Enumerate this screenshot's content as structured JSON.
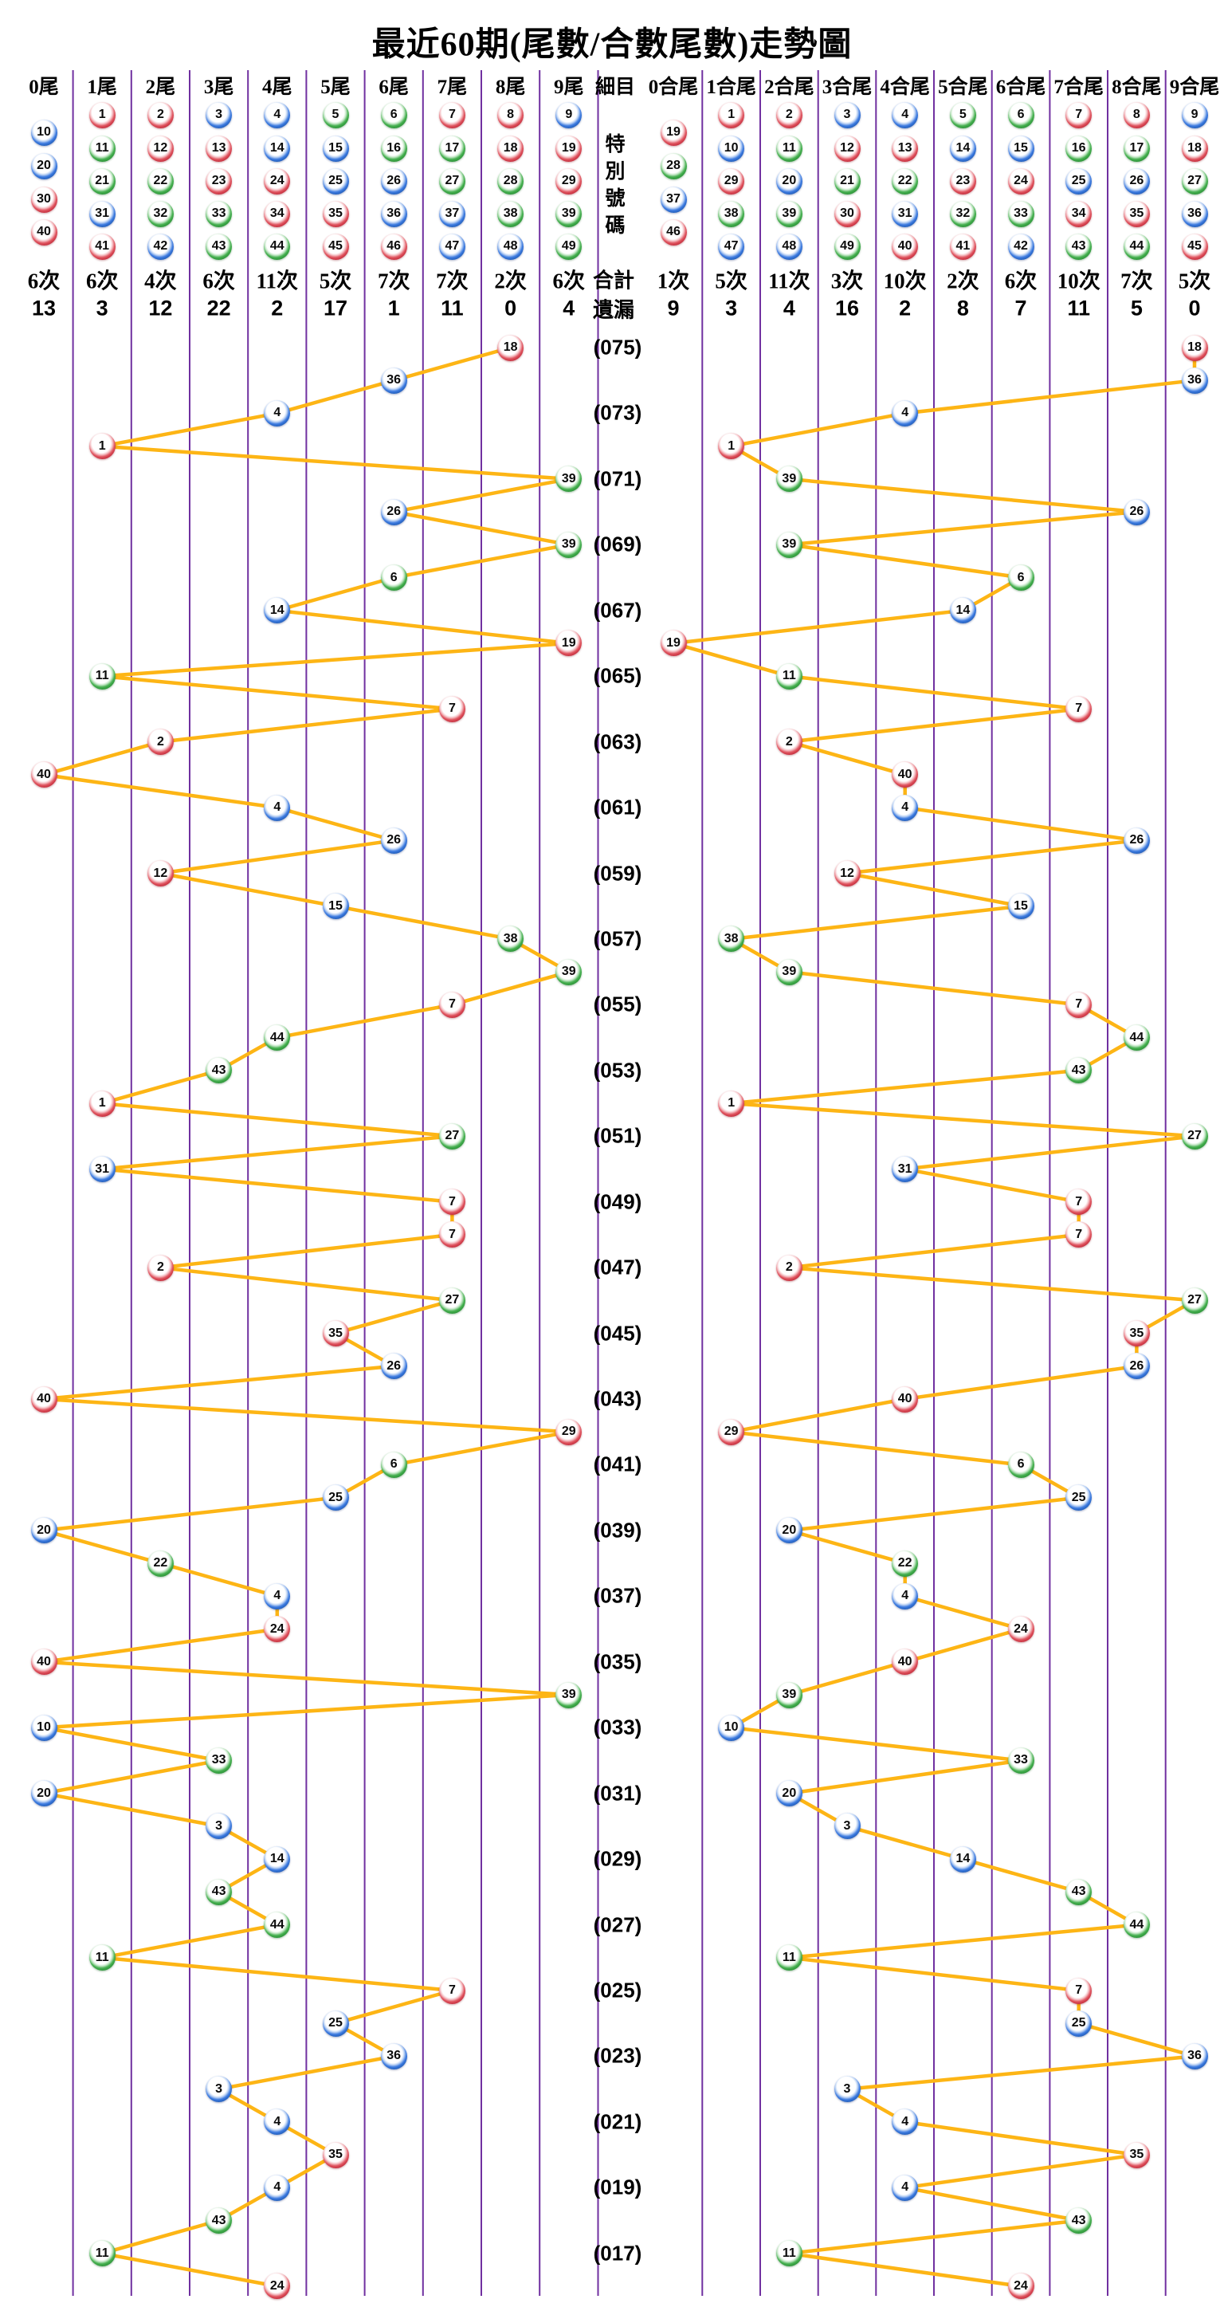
{
  "title": "最近60期(尾數/合數尾數)走勢圖",
  "detail_column": {
    "header": "細目",
    "special_number_label": "特別號碼",
    "total_label": "合計",
    "missing_label": "遺漏"
  },
  "left_section": {
    "headers": [
      "0尾",
      "1尾",
      "2尾",
      "3尾",
      "4尾",
      "5尾",
      "6尾",
      "7尾",
      "8尾",
      "9尾"
    ],
    "palette": [
      [
        10,
        20,
        30,
        40
      ],
      [
        1,
        11,
        21,
        31,
        41
      ],
      [
        2,
        12,
        22,
        32,
        42
      ],
      [
        3,
        13,
        23,
        33,
        43
      ],
      [
        4,
        14,
        24,
        34,
        44
      ],
      [
        5,
        15,
        25,
        35,
        45
      ],
      [
        6,
        16,
        26,
        36,
        46
      ],
      [
        7,
        17,
        27,
        37,
        47
      ],
      [
        8,
        18,
        28,
        38,
        48
      ],
      [
        9,
        19,
        29,
        39,
        49
      ]
    ],
    "counts": [
      "6次",
      "6次",
      "4次",
      "6次",
      "11次",
      "5次",
      "7次",
      "7次",
      "2次",
      "6次"
    ],
    "missing": [
      "13",
      "3",
      "12",
      "22",
      "2",
      "17",
      "1",
      "11",
      "0",
      "4"
    ]
  },
  "right_section": {
    "headers": [
      "0合尾",
      "1合尾",
      "2合尾",
      "3合尾",
      "4合尾",
      "5合尾",
      "6合尾",
      "7合尾",
      "8合尾",
      "9合尾"
    ],
    "palette": [
      [
        19,
        28,
        37,
        46
      ],
      [
        1,
        10,
        29,
        38,
        47
      ],
      [
        2,
        11,
        20,
        39,
        48
      ],
      [
        3,
        12,
        21,
        30,
        49
      ],
      [
        4,
        13,
        22,
        31,
        40
      ],
      [
        5,
        14,
        23,
        32,
        41
      ],
      [
        6,
        15,
        24,
        33,
        42
      ],
      [
        7,
        16,
        25,
        34,
        43
      ],
      [
        8,
        17,
        26,
        35,
        44
      ],
      [
        9,
        18,
        27,
        36,
        45
      ]
    ],
    "counts": [
      "1次",
      "5次",
      "11次",
      "3次",
      "10次",
      "2次",
      "6次",
      "10次",
      "7次",
      "5次"
    ],
    "missing": [
      "9",
      "3",
      "4",
      "16",
      "2",
      "8",
      "7",
      "11",
      "5",
      "0"
    ]
  },
  "chart_data": {
    "type": "line",
    "title": "最近60期(尾數/合數尾數)走勢圖",
    "description": "Special-number tail digit (left, 0尾–9尾) and digit-sum tail (right, 0合尾–9合尾) trend over the most recent 60 draws, newest at top; connected zigzag lines.",
    "periods": 60,
    "period_labels_every_other_row": [
      "(075)",
      "(073)",
      "(071)",
      "(069)",
      "(067)",
      "(065)",
      "(063)",
      "(061)",
      "(059)",
      "(057)",
      "(055)",
      "(053)",
      "(051)",
      "(049)",
      "(047)",
      "(045)",
      "(043)",
      "(041)",
      "(039)",
      "(037)",
      "(035)",
      "(033)",
      "(031)",
      "(029)",
      "(027)",
      "(025)",
      "(023)",
      "(021)",
      "(019)",
      "(017)"
    ],
    "draws_newest_first": [
      18,
      36,
      4,
      1,
      39,
      26,
      39,
      6,
      14,
      19,
      11,
      7,
      2,
      40,
      4,
      26,
      12,
      15,
      38,
      39,
      7,
      44,
      43,
      1,
      27,
      31,
      7,
      7,
      2,
      27,
      35,
      26,
      40,
      29,
      6,
      25,
      20,
      22,
      4,
      24,
      40,
      39,
      10,
      33,
      20,
      3,
      14,
      43,
      44,
      11,
      7,
      25,
      36,
      3,
      4,
      35,
      4,
      43,
      11,
      24
    ],
    "series": [
      {
        "name": "尾數",
        "rule": "number mod 10",
        "axis": "left"
      },
      {
        "name": "合數尾數",
        "rule": "digit-sum mod 10",
        "axis": "right"
      }
    ],
    "left_categories": [
      "0尾",
      "1尾",
      "2尾",
      "3尾",
      "4尾",
      "5尾",
      "6尾",
      "7尾",
      "8尾",
      "9尾"
    ],
    "right_categories": [
      "0合尾",
      "1合尾",
      "2合尾",
      "3合尾",
      "4合尾",
      "5合尾",
      "6合尾",
      "7合尾",
      "8合尾",
      "9合尾"
    ],
    "ball_color_groups": {
      "red": [
        1,
        2,
        7,
        8,
        12,
        13,
        18,
        19,
        23,
        24,
        29,
        30,
        34,
        35,
        40,
        45,
        46
      ],
      "blue": [
        3,
        4,
        9,
        10,
        14,
        15,
        20,
        25,
        26,
        31,
        36,
        37,
        42,
        47,
        48
      ],
      "green": [
        5,
        6,
        11,
        16,
        17,
        21,
        22,
        27,
        28,
        32,
        33,
        38,
        39,
        43,
        44,
        49
      ]
    },
    "colors": {
      "red": "#B01224",
      "blue": "#114A9E",
      "green": "#1B7F28",
      "line": "#FDB515",
      "grid": "#7030A0",
      "text": "#000000"
    },
    "grid": "vertical column separators only",
    "legend_position": "none"
  }
}
